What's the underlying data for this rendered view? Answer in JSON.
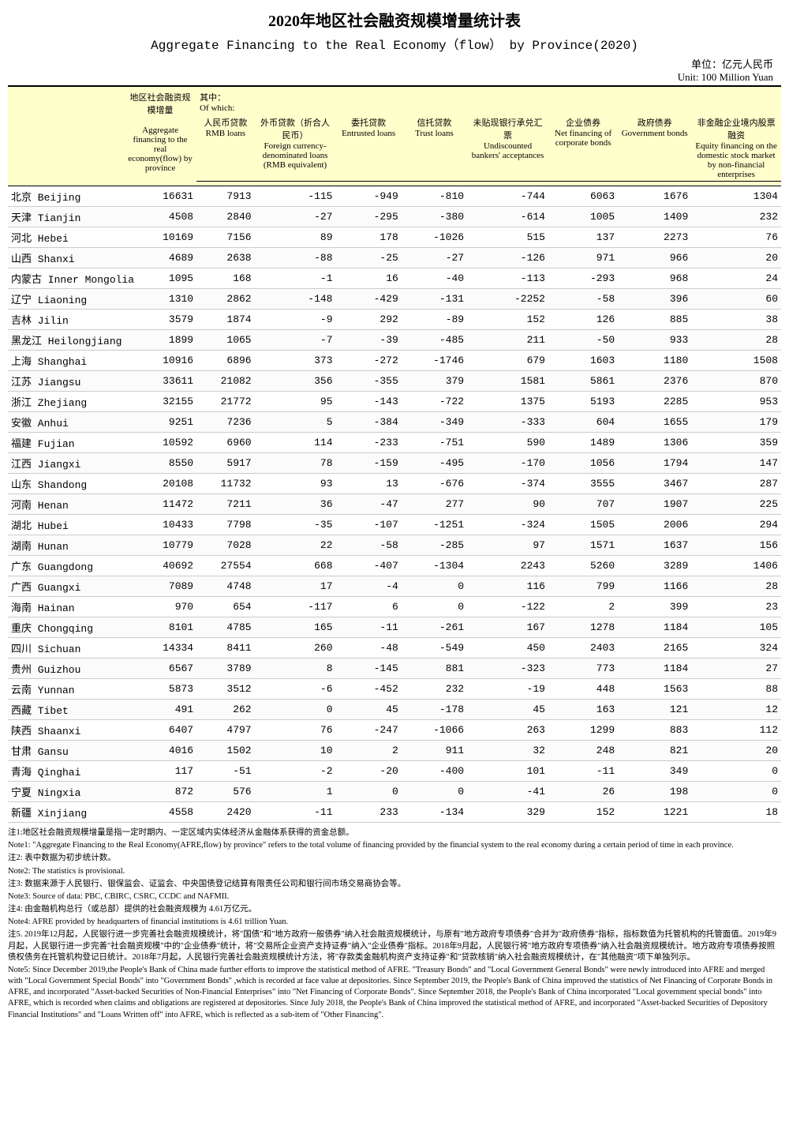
{
  "title_cn": "2020年地区社会融资规模增量统计表",
  "title_en": "Aggregate Financing to the Real Economy（flow） by Province(2020)",
  "unit_cn": "单位：亿元人民币",
  "unit_en": "Unit: 100 Million Yuan",
  "headers": {
    "province_blank": "",
    "aggregate_cn": "地区社会融资规模增量",
    "aggregate_en": "Aggregate financing to the real economy(flow) by province",
    "ofwhich_cn": "其中：",
    "ofwhich_en": "Of which:",
    "rmb_cn": "人民币贷款",
    "rmb_en": "RMB loans",
    "fx_cn": "外币贷款（折合人民币）",
    "fx_en": "Foreign currency-denominated loans (RMB equivalent)",
    "entrusted_cn": "委托贷款",
    "entrusted_en": "Entrusted loans",
    "trust_cn": "信托贷款",
    "trust_en": "Trust loans",
    "undisc_cn": "未贴现银行承兑汇票",
    "undisc_en": "Undiscounted bankers' acceptances",
    "corp_cn": "企业债券",
    "corp_en": "Net financing of corporate bonds",
    "gov_cn": "政府债券",
    "gov_en": "Government bonds",
    "equity_cn": "非金融企业境内股票融资",
    "equity_en": "Equity financing on the domestic stock market by non-financial enterprises"
  },
  "rows": [
    {
      "p": "北京 Beijing",
      "v": [
        "16631",
        "7913",
        "-115",
        "-949",
        "-810",
        "-744",
        "6063",
        "1676",
        "1304"
      ]
    },
    {
      "p": "天津 Tianjin",
      "v": [
        "4508",
        "2840",
        "-27",
        "-295",
        "-380",
        "-614",
        "1005",
        "1409",
        "232"
      ]
    },
    {
      "p": "河北 Hebei",
      "v": [
        "10169",
        "7156",
        "89",
        "178",
        "-1026",
        "515",
        "137",
        "2273",
        "76"
      ]
    },
    {
      "p": "山西 Shanxi",
      "v": [
        "4689",
        "2638",
        "-88",
        "-25",
        "-27",
        "-126",
        "971",
        "966",
        "20"
      ]
    },
    {
      "p": "内蒙古 Inner Mongolia",
      "v": [
        "1095",
        "168",
        "-1",
        "16",
        "-40",
        "-113",
        "-293",
        "968",
        "24"
      ]
    },
    {
      "p": "辽宁 Liaoning",
      "v": [
        "1310",
        "2862",
        "-148",
        "-429",
        "-131",
        "-2252",
        "-58",
        "396",
        "60"
      ]
    },
    {
      "p": "吉林 Jilin",
      "v": [
        "3579",
        "1874",
        "-9",
        "292",
        "-89",
        "152",
        "126",
        "885",
        "38"
      ]
    },
    {
      "p": "黑龙江 Heilongjiang",
      "v": [
        "1899",
        "1065",
        "-7",
        "-39",
        "-485",
        "211",
        "-50",
        "933",
        "28"
      ]
    },
    {
      "p": "上海 Shanghai",
      "v": [
        "10916",
        "6896",
        "373",
        "-272",
        "-1746",
        "679",
        "1603",
        "1180",
        "1508"
      ]
    },
    {
      "p": "江苏 Jiangsu",
      "v": [
        "33611",
        "21082",
        "356",
        "-355",
        "379",
        "1581",
        "5861",
        "2376",
        "870"
      ]
    },
    {
      "p": "浙江 Zhejiang",
      "v": [
        "32155",
        "21772",
        "95",
        "-143",
        "-722",
        "1375",
        "5193",
        "2285",
        "953"
      ]
    },
    {
      "p": "安徽 Anhui",
      "v": [
        "9251",
        "7236",
        "5",
        "-384",
        "-349",
        "-333",
        "604",
        "1655",
        "179"
      ]
    },
    {
      "p": "福建 Fujian",
      "v": [
        "10592",
        "6960",
        "114",
        "-233",
        "-751",
        "590",
        "1489",
        "1306",
        "359"
      ]
    },
    {
      "p": "江西 Jiangxi",
      "v": [
        "8550",
        "5917",
        "78",
        "-159",
        "-495",
        "-170",
        "1056",
        "1794",
        "147"
      ]
    },
    {
      "p": "山东 Shandong",
      "v": [
        "20108",
        "11732",
        "93",
        "13",
        "-676",
        "-374",
        "3555",
        "3467",
        "287"
      ]
    },
    {
      "p": "河南 Henan",
      "v": [
        "11472",
        "7211",
        "36",
        "-47",
        "277",
        "90",
        "707",
        "1907",
        "225"
      ]
    },
    {
      "p": "湖北 Hubei",
      "v": [
        "10433",
        "7798",
        "-35",
        "-107",
        "-1251",
        "-324",
        "1505",
        "2006",
        "294"
      ]
    },
    {
      "p": "湖南 Hunan",
      "v": [
        "10779",
        "7028",
        "22",
        "-58",
        "-285",
        "97",
        "1571",
        "1637",
        "156"
      ]
    },
    {
      "p": "广东 Guangdong",
      "v": [
        "40692",
        "27554",
        "668",
        "-407",
        "-1304",
        "2243",
        "5260",
        "3289",
        "1406"
      ]
    },
    {
      "p": "广西 Guangxi",
      "v": [
        "7089",
        "4748",
        "17",
        "-4",
        "0",
        "116",
        "799",
        "1166",
        "28"
      ]
    },
    {
      "p": "海南 Hainan",
      "v": [
        "970",
        "654",
        "-117",
        "6",
        "0",
        "-122",
        "2",
        "399",
        "23"
      ]
    },
    {
      "p": "重庆 Chongqing",
      "v": [
        "8101",
        "4785",
        "165",
        "-11",
        "-261",
        "167",
        "1278",
        "1184",
        "105"
      ]
    },
    {
      "p": "四川 Sichuan",
      "v": [
        "14334",
        "8411",
        "260",
        "-48",
        "-549",
        "450",
        "2403",
        "2165",
        "324"
      ]
    },
    {
      "p": "贵州 Guizhou",
      "v": [
        "6567",
        "3789",
        "8",
        "-145",
        "881",
        "-323",
        "773",
        "1184",
        "27"
      ]
    },
    {
      "p": "云南 Yunnan",
      "v": [
        "5873",
        "3512",
        "-6",
        "-452",
        "232",
        "-19",
        "448",
        "1563",
        "88"
      ]
    },
    {
      "p": "西藏 Tibet",
      "v": [
        "491",
        "262",
        "0",
        "45",
        "-178",
        "45",
        "163",
        "121",
        "12"
      ]
    },
    {
      "p": "陕西 Shaanxi",
      "v": [
        "6407",
        "4797",
        "76",
        "-247",
        "-1066",
        "263",
        "1299",
        "883",
        "112"
      ]
    },
    {
      "p": "甘肃 Gansu",
      "v": [
        "4016",
        "1502",
        "10",
        "2",
        "911",
        "32",
        "248",
        "821",
        "20"
      ]
    },
    {
      "p": "青海 Qinghai",
      "v": [
        "117",
        "-51",
        "-2",
        "-20",
        "-400",
        "101",
        "-11",
        "349",
        "0"
      ]
    },
    {
      "p": "宁夏 Ningxia",
      "v": [
        "872",
        "576",
        "1",
        "0",
        "0",
        "-41",
        "26",
        "198",
        "0"
      ]
    },
    {
      "p": "新疆 Xinjiang",
      "v": [
        "4558",
        "2420",
        "-11",
        "233",
        "-134",
        "329",
        "152",
        "1221",
        "18"
      ]
    }
  ],
  "notes": [
    {
      "cn": "注1:地区社会融资规模增量是指一定时期内、一定区域内实体经济从金融体系获得的资金总额。",
      "en": "Note1: \"Aggregate Financing to the Real Economy(AFRE,flow) by province\" refers to the total volume of financing provided by the financial system to the real economy during a certain period of time in each province."
    },
    {
      "cn": "注2: 表中数据为初步统计数。",
      "en": "Note2: The statistics is provisional."
    },
    {
      "cn": "注3: 数据来源于人民银行、银保监会、证监会、中央国债登记结算有限责任公司和银行间市场交易商协会等。",
      "en": "Note3: Source of data: PBC, CBIRC, CSRC, CCDC and NAFMII."
    },
    {
      "cn": "注4: 由金融机构总行（或总部）提供的社会融资规模为 4.61万亿元。",
      "en": "Note4: AFRE provided by headquarters of financial institutions is 4.61 trillion Yuan."
    },
    {
      "cn": "注5. 2019年12月起，人民银行进一步完善社会融资规模统计，将\"国债\"和\"地方政府一般债券\"纳入社会融资规模统计，与原有\"地方政府专项债券\"合并为\"政府债券\"指标，指标数值为托管机构的托管面值。2019年9月起，人民银行进一步完善\"社会融资规模\"中的\"企业债券\"统计，将\"交易所企业资产支持证券\"纳入\"企业债券\"指标。2018年9月起，人民银行将\"地方政府专项债券\"纳入社会融资规模统计。地方政府专项债券按照债权债务在托管机构登记日统计。2018年7月起，人民银行完善社会融资规模统计方法，将\"存款类金融机构资产支持证券\"和\"贷款核销\"纳入社会融资规模统计，在\"其他融资\"项下单独列示。",
      "en": "Note5:  Since December 2019,the People's Bank of China made further efforts to improve the statistical method of AFRE. \"Treasury Bonds\" and \"Local Government General Bonds\" were newly introduced into AFRE and merged with \"Local Government Special Bonds\" into \"Government Bonds\" ,which is recorded at face value at depositories. Since September 2019, the People's Bank of China improved the statistics of Net Financing of Corporate Bonds in AFRE, and incorporated \"Asset-backed Securities of Non-Financial Enterprises\" into \"Net Financing of Corporate Bonds\". Since September 2018, the People's Bank of China incorporated \"Local government special bonds\" into AFRE, which is recorded when claims and obligations are registered at depositories. Since July 2018, the People's Bank of China improved the statistical method of AFRE, and incorporated \"Asset-backed Securities of Depository Financial Institutions\" and \"Loans Written off\" into AFRE, which is reflected as a sub-item of \"Other Financing\"."
    }
  ]
}
